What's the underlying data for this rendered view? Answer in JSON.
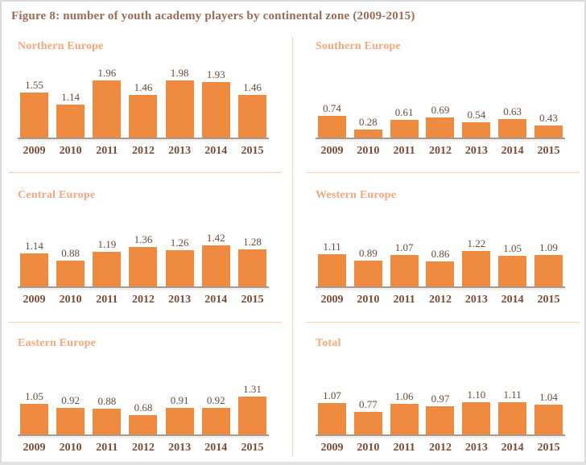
{
  "title": "Figure 8: number of youth academy players by continental zone (2009-2015)",
  "colors": {
    "bar": "#ef8a41",
    "figure_title": "#9c6b51",
    "panel_title": "#f7a87b",
    "value_label": "#6e4a36",
    "year_label": "#7b4b33",
    "axis": "#a79a8b",
    "divider": "#f8cfb4"
  },
  "chart_data": [
    {
      "type": "bar",
      "title": "Northern Europe",
      "categories": [
        "2009",
        "2010",
        "2011",
        "2012",
        "2013",
        "2014",
        "2015"
      ],
      "values": [
        1.55,
        1.14,
        1.96,
        1.46,
        1.98,
        1.93,
        1.46
      ],
      "ylim": [
        0,
        2.2
      ],
      "value_labels_shown": true,
      "grid": false,
      "legend": false
    },
    {
      "type": "bar",
      "title": "Southern Europe",
      "categories": [
        "2009",
        "2010",
        "2011",
        "2012",
        "2013",
        "2014",
        "2015"
      ],
      "values": [
        0.74,
        0.28,
        0.61,
        0.69,
        0.54,
        0.63,
        0.43
      ],
      "ylim": [
        0,
        2.2
      ],
      "value_labels_shown": true,
      "grid": false,
      "legend": false
    },
    {
      "type": "bar",
      "title": "Central Europe",
      "categories": [
        "2009",
        "2010",
        "2011",
        "2012",
        "2013",
        "2014",
        "2015"
      ],
      "values": [
        1.14,
        0.88,
        1.19,
        1.36,
        1.26,
        1.42,
        1.28
      ],
      "ylim": [
        0,
        2.2
      ],
      "value_labels_shown": true,
      "grid": false,
      "legend": false
    },
    {
      "type": "bar",
      "title": "Western Europe",
      "categories": [
        "2009",
        "2010",
        "2011",
        "2012",
        "2013",
        "2014",
        "2015"
      ],
      "values": [
        1.11,
        0.89,
        1.07,
        0.86,
        1.22,
        1.05,
        1.09
      ],
      "ylim": [
        0,
        2.2
      ],
      "value_labels_shown": true,
      "grid": false,
      "legend": false
    },
    {
      "type": "bar",
      "title": "Eastern Europe",
      "categories": [
        "2009",
        "2010",
        "2011",
        "2012",
        "2013",
        "2014",
        "2015"
      ],
      "values": [
        1.05,
        0.92,
        0.88,
        0.68,
        0.91,
        0.92,
        1.31
      ],
      "ylim": [
        0,
        2.2
      ],
      "value_labels_shown": true,
      "grid": false,
      "legend": false
    },
    {
      "type": "bar",
      "title": "Total",
      "categories": [
        "2009",
        "2010",
        "2011",
        "2012",
        "2013",
        "2014",
        "2015"
      ],
      "values": [
        1.07,
        0.77,
        1.06,
        0.97,
        1.1,
        1.11,
        1.04
      ],
      "ylim": [
        0,
        2.2
      ],
      "value_labels_shown": true,
      "grid": false,
      "legend": false
    }
  ]
}
